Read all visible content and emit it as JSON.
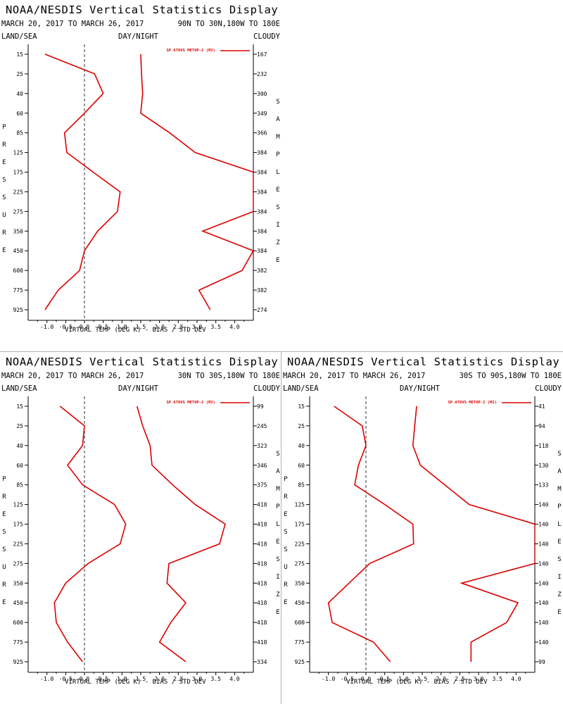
{
  "pressure_levels": [
    "15",
    "25",
    "40",
    "60",
    "85",
    "125",
    "175",
    "225",
    "275",
    "350",
    "450",
    "600",
    "775",
    "925"
  ],
  "xticks": [
    "-1.0",
    "-0.5",
    "0.0",
    "0.5",
    "1.0",
    "1.5",
    "2.0",
    "2.5",
    "3.0",
    "3.5",
    "4.0"
  ],
  "chart_data": [
    {
      "type": "line",
      "title": "NOAA/NESDIS Vertical Statistics Display",
      "daterange": "MARCH 20, 2017 TO MARCH 26, 2017",
      "region": "90N TO 30N,180W TO 180E",
      "land_sea": "LAND/SEA",
      "day_night": "DAY/NIGHT",
      "cloudy": "CLOUDY",
      "ylabel": "PRESSURE",
      "y2label": "SAMPLE SIZE",
      "xlabel": "VIRTUAL TEMP (DEG K) - BIAS / STD DEV",
      "xlim": [
        -1.5,
        4.5
      ],
      "legend": "SP ATOVS METOP-2 (M2)",
      "legend_position": "top-right",
      "line_color": "#dd0000",
      "bias": [
        -1.05,
        0.27,
        0.5,
        0.0,
        -0.53,
        -0.47,
        0.23,
        0.95,
        0.88,
        0.35,
        0.0,
        -0.13,
        -0.7,
        -1.05
      ],
      "stddev": [
        1.5,
        1.52,
        1.55,
        1.5,
        2.27,
        2.95,
        4.5,
        4.5,
        4.5,
        3.15,
        4.5,
        4.2,
        3.05,
        3.35
      ],
      "sample_size": [
        "167",
        "232",
        "300",
        "349",
        "366",
        "384",
        "384",
        "384",
        "384",
        "384",
        "384",
        "382",
        "382",
        "274"
      ]
    },
    {
      "type": "line",
      "title": "NOAA/NESDIS Vertical Statistics Display",
      "daterange": "MARCH 20, 2017 TO MARCH 26, 2017",
      "region": "30N TO 30S,180W TO 180E",
      "land_sea": "LAND/SEA",
      "day_night": "DAY/NIGHT",
      "cloudy": "CLOUDY",
      "ylabel": "PRESSURE",
      "y2label": "SAMPLE SIZE",
      "xlabel": "VIRTUAL TEMP (DEG K) - BIAS / STD DEV",
      "xlim": [
        -1.5,
        4.5
      ],
      "legend": "SP ATOVS METOP-2 (M2)",
      "legend_position": "top-right",
      "line_color": "#dd0000",
      "bias": [
        -0.65,
        0.0,
        -0.05,
        -0.45,
        -0.05,
        0.8,
        1.1,
        0.95,
        0.1,
        -0.5,
        -0.8,
        -0.75,
        -0.45,
        -0.05
      ],
      "stddev": [
        1.4,
        1.55,
        1.75,
        1.8,
        2.35,
        2.95,
        3.75,
        3.6,
        2.25,
        2.2,
        2.7,
        2.3,
        2.0,
        2.7
      ],
      "sample_size": [
        "99",
        "245",
        "323",
        "346",
        "375",
        "418",
        "418",
        "418",
        "418",
        "418",
        "418",
        "418",
        "418",
        "334"
      ]
    },
    {
      "type": "line",
      "title": "NOAA/NESDIS Vertical Statistics Display",
      "daterange": "MARCH 20, 2017 TO MARCH 26, 2017",
      "region": "30S TO 90S,180W TO 180E",
      "land_sea": "LAND/SEA",
      "day_night": "DAY/NIGHT",
      "cloudy": "CLOUDY",
      "ylabel": "PRESSURE",
      "y2label": "SAMPLE SIZE",
      "xlabel": "VIRTUAL TEMP (DEG K) - BIAS / STD DEV",
      "xlim": [
        -1.5,
        4.5
      ],
      "legend": "SP ATOVS METOP-2 (M2)",
      "legend_position": "top-right",
      "line_color": "#dd0000",
      "bias": [
        -0.85,
        -0.1,
        0.0,
        -0.2,
        -0.3,
        0.5,
        1.25,
        1.27,
        0.1,
        -0.45,
        -1.0,
        -0.9,
        0.2,
        0.65
      ],
      "stddev": [
        1.35,
        1.3,
        1.25,
        1.45,
        2.1,
        2.75,
        4.5,
        4.5,
        4.5,
        2.55,
        4.05,
        3.75,
        2.8,
        2.8
      ],
      "sample_size": [
        "41",
        "94",
        "118",
        "130",
        "133",
        "140",
        "140",
        "140",
        "140",
        "140",
        "140",
        "140",
        "140",
        "99"
      ]
    }
  ]
}
